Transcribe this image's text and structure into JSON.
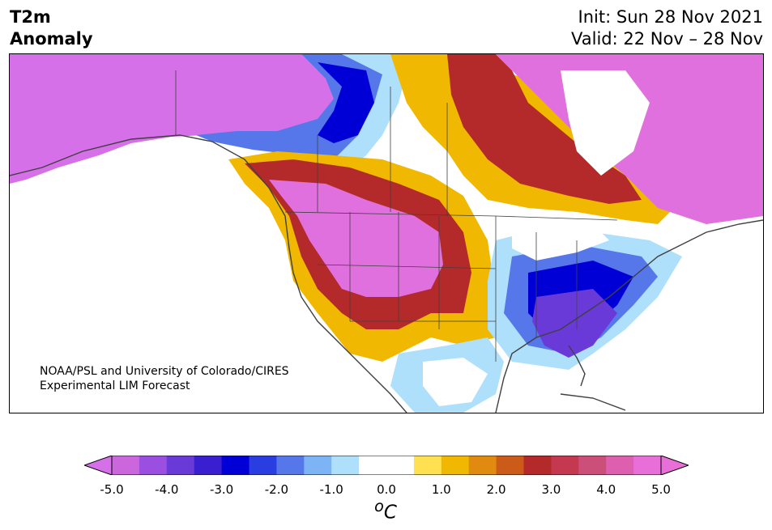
{
  "title": {
    "variable": "T2m",
    "subtitle": "Anomaly",
    "init": "Init: Sun 28 Nov 2021",
    "valid": "Valid: 22 Nov – 28 Nov"
  },
  "credit": {
    "line1": "NOAA/PSL and University of Colorado/CIRES",
    "line2": "Experimental LIM Forecast"
  },
  "colorbar": {
    "units": "oC",
    "unit_superscript": "o",
    "unit_letter": "C",
    "ticks": [
      "-5.0",
      "-4.0",
      "-3.0",
      "-2.0",
      "-1.0",
      "0.0",
      "1.0",
      "2.0",
      "3.0",
      "4.0",
      "5.0"
    ],
    "colors": [
      "#cc66dd",
      "#9a4fe0",
      "#6a3ad8",
      "#3a1fd0",
      "#0000d6",
      "#2a3de0",
      "#5577ea",
      "#7db4f5",
      "#aee0fb",
      "#ffffff",
      "#ffffff",
      "#ffe050",
      "#f0b800",
      "#e08a10",
      "#cc5a18",
      "#b42a2a",
      "#c43850",
      "#cc4f7a",
      "#dd5fae",
      "#e86fd8"
    ],
    "min_color": "#d670e8",
    "max_color": "#e86fd8"
  },
  "regions": {
    "warm_west": "Western US / Canada warm anomaly",
    "cold_east": "Eastern US cold anomaly"
  }
}
